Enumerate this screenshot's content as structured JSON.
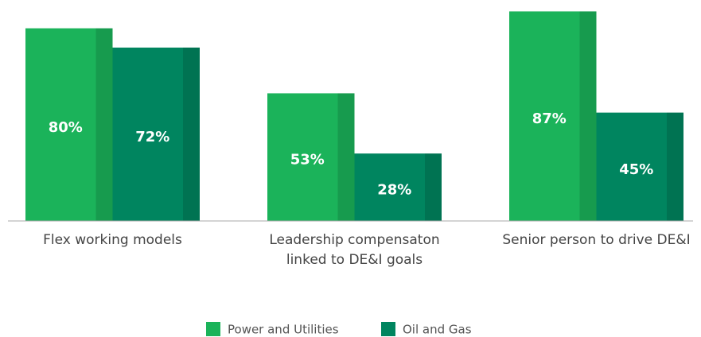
{
  "chart_data": {
    "type": "bar",
    "categories": [
      "Flex working models",
      "Leadership compensaton linked to DE&I goals",
      "Senior person to drive DE&I"
    ],
    "series": [
      {
        "name": "Power and Utilities",
        "color": "#1bb35a",
        "values": [
          80,
          53,
          87
        ],
        "value_labels": [
          "80%",
          "53%",
          "87%"
        ]
      },
      {
        "name": "Oil and Gas",
        "color": "#00855f",
        "values": [
          72,
          28,
          45
        ],
        "value_labels": [
          "72%",
          "28%",
          "45%"
        ]
      }
    ],
    "ylim": [
      0,
      100
    ]
  }
}
